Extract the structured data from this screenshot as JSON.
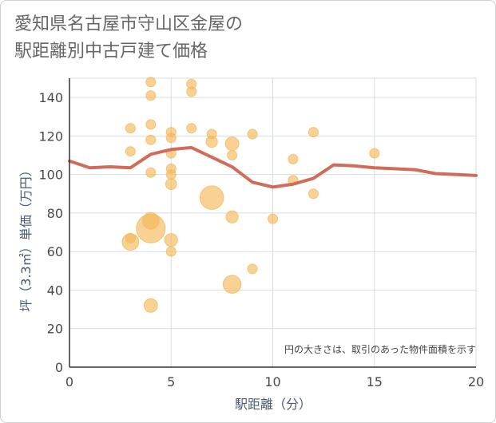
{
  "chart_data": {
    "type": "scatter",
    "title_lines": [
      "愛知県名古屋市守山区金屋の",
      "駅距離別中古戸建て価格"
    ],
    "xlabel": "駅距離（分）",
    "ylabel": "坪（3.3㎡）単価（万円）",
    "xlim": [
      0,
      20
    ],
    "ylim": [
      0,
      150
    ],
    "x_ticks": [
      0,
      5,
      10,
      15,
      20
    ],
    "y_ticks": [
      0,
      20,
      40,
      60,
      80,
      100,
      120,
      140
    ],
    "note": "円の大きさは、取引のあった物件面積を示す",
    "colors": {
      "bubble": "#f5b95a",
      "line": "#d16b5a",
      "grid": "#d6dde6"
    },
    "points": [
      {
        "x": 3,
        "y": 124,
        "size": 1
      },
      {
        "x": 3,
        "y": 112,
        "size": 1
      },
      {
        "x": 3,
        "y": 65,
        "size": 3
      },
      {
        "x": 3,
        "y": 67,
        "size": 1
      },
      {
        "x": 4,
        "y": 148,
        "size": 1
      },
      {
        "x": 4,
        "y": 141,
        "size": 1
      },
      {
        "x": 4,
        "y": 126,
        "size": 1
      },
      {
        "x": 4,
        "y": 118,
        "size": 1
      },
      {
        "x": 4,
        "y": 101,
        "size": 1
      },
      {
        "x": 4,
        "y": 72,
        "size": 9
      },
      {
        "x": 4,
        "y": 76,
        "size": 3
      },
      {
        "x": 4,
        "y": 32,
        "size": 2
      },
      {
        "x": 5,
        "y": 122,
        "size": 1
      },
      {
        "x": 5,
        "y": 119,
        "size": 1
      },
      {
        "x": 5,
        "y": 111,
        "size": 1
      },
      {
        "x": 5,
        "y": 103,
        "size": 1
      },
      {
        "x": 5,
        "y": 100,
        "size": 1
      },
      {
        "x": 5,
        "y": 95,
        "size": 1.3
      },
      {
        "x": 5,
        "y": 66,
        "size": 1.8
      },
      {
        "x": 5,
        "y": 60,
        "size": 1
      },
      {
        "x": 6,
        "y": 147,
        "size": 1
      },
      {
        "x": 6,
        "y": 143,
        "size": 1
      },
      {
        "x": 6,
        "y": 124,
        "size": 1
      },
      {
        "x": 7,
        "y": 121,
        "size": 1
      },
      {
        "x": 7,
        "y": 117,
        "size": 1.4
      },
      {
        "x": 7,
        "y": 88,
        "size": 6
      },
      {
        "x": 8,
        "y": 116,
        "size": 2
      },
      {
        "x": 8,
        "y": 110,
        "size": 1
      },
      {
        "x": 8,
        "y": 78,
        "size": 1.6
      },
      {
        "x": 8,
        "y": 43,
        "size": 3.5
      },
      {
        "x": 9,
        "y": 121,
        "size": 1
      },
      {
        "x": 9,
        "y": 51,
        "size": 1
      },
      {
        "x": 10,
        "y": 77,
        "size": 1
      },
      {
        "x": 11,
        "y": 108,
        "size": 1
      },
      {
        "x": 11,
        "y": 97,
        "size": 1
      },
      {
        "x": 12,
        "y": 122,
        "size": 1
      },
      {
        "x": 12,
        "y": 90,
        "size": 1
      },
      {
        "x": 15,
        "y": 111,
        "size": 1
      }
    ],
    "average_line": {
      "x": [
        0,
        1,
        2,
        3,
        4,
        5,
        6,
        7,
        8,
        9,
        10,
        11,
        12,
        13,
        14,
        15,
        16,
        17,
        18,
        19,
        20
      ],
      "y": [
        107,
        103.5,
        104,
        103.5,
        110.5,
        113,
        114,
        109,
        104,
        96,
        93.5,
        95,
        98,
        105,
        104.5,
        103.5,
        103,
        102.5,
        100.5,
        100,
        99.5
      ]
    }
  }
}
